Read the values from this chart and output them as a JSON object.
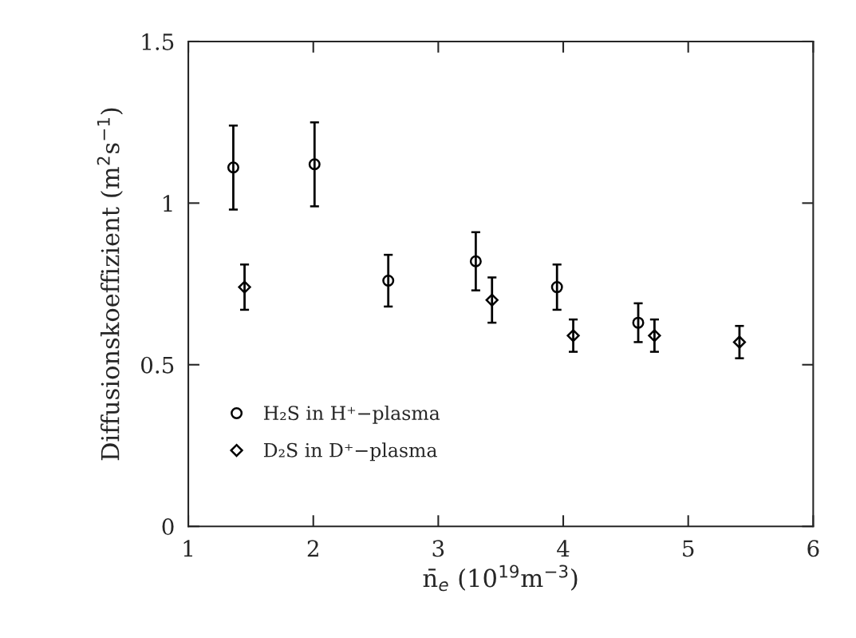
{
  "chart_data": {
    "type": "scatter",
    "xlabel": "n̄$_{e}$ (10$^{19}$m$^{−3}$)",
    "ylabel": "Diffusionskoeffizient (m$^{2}$s$^{−1}$)",
    "series": [
      {
        "name": "H₂S in H⁺−plasma",
        "color": "#000000",
        "marker": "circle",
        "x": [
          1.36,
          2.01,
          2.6,
          3.3,
          3.95,
          4.6
        ],
        "values": [
          1.11,
          1.12,
          0.76,
          0.82,
          0.74,
          0.63
        ],
        "errors": [
          0.13,
          0.13,
          0.08,
          0.09,
          0.07,
          0.06
        ]
      },
      {
        "name": "D₂S in D⁺−plasma",
        "color": "#000000",
        "marker": "diamond",
        "x": [
          1.45,
          3.43,
          4.08,
          4.73,
          5.41
        ],
        "values": [
          0.74,
          0.7,
          0.59,
          0.59,
          0.57
        ],
        "errors": [
          0.07,
          0.07,
          0.05,
          0.05,
          0.05
        ]
      }
    ],
    "xlim": [
      1,
      6
    ],
    "xticks": [
      1,
      2,
      3,
      4,
      5,
      6
    ],
    "ylim": [
      0,
      1.5
    ],
    "yticks": [
      0,
      0.5,
      1,
      1.5
    ],
    "grid": false,
    "legend": "lower left",
    "tick_labels": "xy"
  }
}
